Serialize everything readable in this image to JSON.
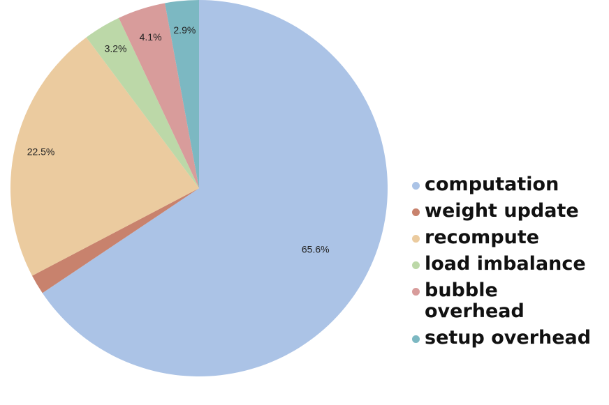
{
  "chart_data": {
    "type": "pie",
    "categories": [
      "computation",
      "weight update",
      "recompute",
      "load imbalance",
      "bubble overhead",
      "setup overhead"
    ],
    "values": [
      65.6,
      1.7,
      22.5,
      3.2,
      4.1,
      2.9
    ],
    "value_labels": [
      "65.6%",
      "",
      "22.5%",
      "3.2%",
      "4.1%",
      "2.9%"
    ],
    "colors": [
      "#abc3e6",
      "#c8826d",
      "#ebcb9f",
      "#bcd8a8",
      "#d89c9b",
      "#7cb8c2"
    ],
    "start_angle": "12 o'clock",
    "direction": "clockwise",
    "legend_position": "right"
  }
}
